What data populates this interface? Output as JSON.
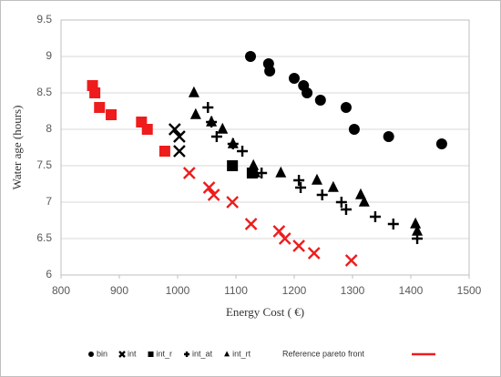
{
  "chart_data": {
    "type": "scatter",
    "x_label": "Energy Cost ( €)",
    "y_label": "Water age (hours)",
    "xlim": [
      800,
      1500
    ],
    "xticks": [
      800,
      900,
      1000,
      1100,
      1200,
      1300,
      1400,
      1500
    ],
    "ylim": [
      6,
      9.5
    ],
    "yticks": [
      6,
      6.5,
      7,
      7.5,
      8,
      8.5,
      9,
      9.5
    ],
    "grid": true,
    "legend": "bottom",
    "series": [
      {
        "name": "bin",
        "color": "#000000",
        "marker": "circle",
        "x": [
          1125,
          1156,
          1158,
          1200,
          1216,
          1222,
          1245,
          1289,
          1303,
          1362,
          1453
        ],
        "values": [
          9.0,
          8.9,
          8.8,
          8.7,
          8.6,
          8.5,
          8.4,
          8.3,
          8.0,
          7.9,
          7.8
        ]
      },
      {
        "name": "int",
        "color": "#000000",
        "marker": "x",
        "x": [
          995,
          1003,
          1003
        ],
        "values": [
          8.0,
          7.9,
          7.7
        ]
      },
      {
        "name": "int_r",
        "color": "#000000",
        "marker": "square",
        "x": [
          1094,
          1128
        ],
        "values": [
          7.5,
          7.4
        ]
      },
      {
        "name": "int_at",
        "color": "#000000",
        "marker": "plus",
        "x": [
          1052,
          1058,
          1067,
          1095,
          1111,
          1144,
          1208,
          1211,
          1248,
          1281,
          1289,
          1339,
          1370,
          1411
        ],
        "values": [
          8.3,
          8.1,
          7.9,
          7.8,
          7.7,
          7.4,
          7.3,
          7.2,
          7.1,
          7.0,
          6.9,
          6.8,
          6.7,
          6.5
        ]
      },
      {
        "name": "int_rt",
        "color": "#000000",
        "marker": "triangle",
        "x": [
          1028,
          1031,
          1058,
          1077,
          1095,
          1130,
          1133,
          1177,
          1239,
          1267,
          1314,
          1320,
          1408,
          1411
        ],
        "values": [
          8.5,
          8.2,
          8.1,
          8.0,
          7.8,
          7.5,
          7.4,
          7.4,
          7.3,
          7.2,
          7.1,
          7.0,
          6.7,
          6.6
        ]
      },
      {
        "name": "Reference pareto front",
        "color": "#ee1c1c",
        "legend_marker": "line",
        "marker": [
          "square",
          "square",
          "square",
          "square",
          "square",
          "square",
          "square",
          "x",
          "x",
          "x",
          "x",
          "x",
          "x",
          "x",
          "x",
          "x",
          "x"
        ],
        "x": [
          854,
          858,
          866,
          886,
          938,
          948,
          978,
          1020,
          1054,
          1062,
          1094,
          1126,
          1174,
          1184,
          1208,
          1234,
          1298
        ],
        "values": [
          8.6,
          8.5,
          8.3,
          8.2,
          8.1,
          8.0,
          7.7,
          7.4,
          7.2,
          7.1,
          7.0,
          6.7,
          6.6,
          6.5,
          6.4,
          6.3,
          6.2
        ]
      }
    ]
  }
}
